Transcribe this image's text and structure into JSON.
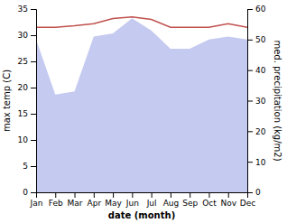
{
  "chart_data": {
    "type": "line",
    "x_label": "date (month)",
    "y_label": "max temp (C)",
    "y2_label": "med. precipitation (kg/m2)",
    "categories": [
      "Jan",
      "Feb",
      "Mar",
      "Apr",
      "May",
      "Jun",
      "Jul",
      "Aug",
      "Sep",
      "Oct",
      "Nov",
      "Dec"
    ],
    "series": [
      {
        "type": "area",
        "axis": "y2",
        "color": "#c5caf0",
        "values": [
          50.0,
          32.0,
          33.0,
          51.0,
          52.0,
          57.0,
          53.0,
          47.0,
          47.0,
          50.0,
          51.0,
          50.0
        ]
      },
      {
        "type": "line",
        "color": "#c0504d",
        "values": [
          31.5,
          31.5,
          31.8,
          32.2,
          33.2,
          33.5,
          33.0,
          31.5,
          31.5,
          31.5,
          32.2,
          31.5
        ]
      }
    ],
    "ylim": [
      0,
      35
    ],
    "yticks": [
      0,
      5,
      10,
      15,
      20,
      25,
      30,
      35
    ],
    "y2lim": [
      0,
      60
    ],
    "y2ticks": [
      0,
      10,
      20,
      30,
      40,
      50,
      60
    ],
    "grid": false
  }
}
